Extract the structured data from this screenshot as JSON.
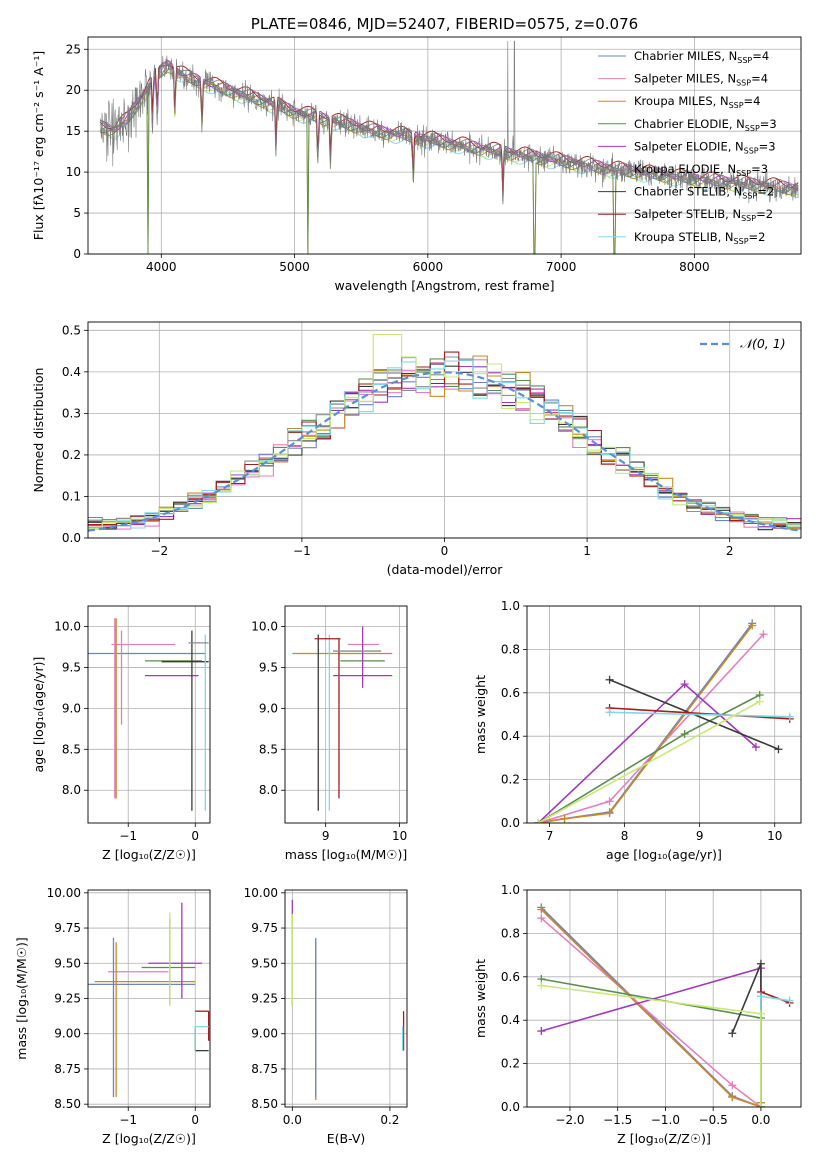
{
  "series_styles": [
    {
      "name": "Chabrier MILES",
      "nssp": "4",
      "color": "#6b84c8"
    },
    {
      "name": "Salpeter MILES",
      "nssp": "4",
      "color": "#e37ec0"
    },
    {
      "name": "Kroupa MILES",
      "nssp": "4",
      "color": "#c98a25"
    },
    {
      "name": "Chabrier ELODIE",
      "nssp": "3",
      "color": "#5b8e4e"
    },
    {
      "name": "Salpeter ELODIE",
      "nssp": "3",
      "color": "#a23ab8"
    },
    {
      "name": "Kroupa ELODIE",
      "nssp": "3",
      "color": "#8c8c8c"
    },
    {
      "name": "Chabrier STELIB",
      "nssp": "2",
      "color": "#3a3a3a"
    },
    {
      "name": "Salpeter STELIB",
      "nssp": "2",
      "color": "#a51e1e"
    },
    {
      "name": "Kroupa STELIB",
      "nssp": "2",
      "color": "#7fd8e8"
    }
  ],
  "chart_data": [
    {
      "id": "spectrum",
      "type": "line",
      "title": "PLATE=0846, MJD=52407, FIBERID=0575, z=0.076",
      "xlabel": "wavelength [Angstrom, rest frame]",
      "ylabel": "Flux [fλ10⁻¹⁷ erg cm⁻² s⁻¹ A⁻¹]",
      "xlim": [
        3450,
        8800
      ],
      "ylim": [
        0,
        26.5
      ],
      "xticks": [
        "4000",
        "5000",
        "6000",
        "7000",
        "8000"
      ],
      "yticks": [
        "0",
        "5",
        "10",
        "15",
        "20",
        "25"
      ],
      "legend_position": "upper right",
      "continuum_knots": {
        "x": [
          3550,
          3650,
          3750,
          3850,
          3950,
          4050,
          4200,
          4400,
          4600,
          4800,
          5000,
          5200,
          5400,
          5600,
          5800,
          6000,
          6200,
          6400,
          6600,
          6800,
          7000,
          7200,
          7400,
          7600,
          7800,
          8000,
          8200,
          8400,
          8600,
          8750
        ],
        "y": [
          15.5,
          15.0,
          16.5,
          19.0,
          21.5,
          23.0,
          21.5,
          20.5,
          19.5,
          18.5,
          17.3,
          16.6,
          15.8,
          15.0,
          14.5,
          14.0,
          13.4,
          12.8,
          12.3,
          11.8,
          11.3,
          10.8,
          10.3,
          9.9,
          9.5,
          9.1,
          8.8,
          8.5,
          8.2,
          8.0
        ]
      },
      "features": {
        "absorption_lines": [
          3934,
          3969,
          4102,
          4305,
          4861,
          5175,
          5270,
          5890,
          6563
        ],
        "drops_to_zero": [
          3900,
          5100,
          6800,
          7400
        ],
        "spikes": [
          6600,
          6650
        ]
      }
    },
    {
      "id": "residuals",
      "type": "step-histogram",
      "xlabel": "(data-model)/error",
      "ylabel": "Normed distribution",
      "xlim": [
        -2.5,
        2.5
      ],
      "ylim": [
        0,
        0.52
      ],
      "xticks": [
        "−2",
        "−1",
        "0",
        "1",
        "2"
      ],
      "yticks": [
        "0.0",
        "0.1",
        "0.2",
        "0.3",
        "0.4",
        "0.5"
      ],
      "bin_width": 0.1,
      "reference_curve": "𝒩(0, 1)",
      "legend_position": "upper right"
    },
    {
      "id": "age-vs-z",
      "type": "errorbar",
      "xlabel": "Z [log₁₀(Z/Z☉)]",
      "ylabel": "age  [log₁₀(age/yr)]",
      "xlim": [
        -1.6,
        0.22
      ],
      "ylim": [
        7.6,
        10.25
      ],
      "xticks": [
        "−1",
        "0"
      ],
      "yticks": [
        "8.0",
        "8.5",
        "9.0",
        "9.5",
        "10.0"
      ],
      "points": [
        {
          "s": 0,
          "x": -0.55,
          "y": 9.67,
          "xe": [
            -1.6,
            0.15
          ],
          "ye": null
        },
        {
          "s": 1,
          "x": -0.8,
          "y": 9.78,
          "xe": [
            -1.25,
            -0.3
          ],
          "ye": null
        },
        {
          "s": 1,
          "x": -1.2,
          "y": 9.0,
          "xe": null,
          "ye": [
            7.9,
            10.1
          ]
        },
        {
          "s": 2,
          "x": -1.18,
          "y": 9.0,
          "xe": null,
          "ye": [
            7.9,
            10.1
          ]
        },
        {
          "s": 1,
          "x": -1.1,
          "y": 9.5,
          "xe": null,
          "ye": [
            8.8,
            9.95
          ]
        },
        {
          "s": 4,
          "x": -0.3,
          "y": 9.4,
          "xe": [
            -0.75,
            0.05
          ],
          "ye": null
        },
        {
          "s": 3,
          "x": -0.3,
          "y": 9.58,
          "xe": [
            -0.75,
            0.1
          ],
          "ye": null
        },
        {
          "s": 6,
          "x": -0.2,
          "y": 9.57,
          "xe": [
            -0.5,
            0.2
          ],
          "ye": null
        },
        {
          "s": 6,
          "x": -0.05,
          "y": 8.9,
          "xe": null,
          "ye": [
            7.75,
            9.95
          ]
        },
        {
          "s": 8,
          "x": 0.15,
          "y": 8.9,
          "xe": null,
          "ye": [
            7.75,
            9.9
          ]
        },
        {
          "s": 5,
          "x": 0.12,
          "y": 9.8,
          "xe": [
            -0.1,
            0.2
          ],
          "ye": null
        }
      ]
    },
    {
      "id": "age-vs-mass",
      "type": "errorbar",
      "xlabel": "mass [log₁₀(M/M☉)]",
      "ylabel": "",
      "xlim": [
        8.45,
        10.1
      ],
      "ylim": [
        7.6,
        10.25
      ],
      "xticks": [
        "9",
        "10"
      ],
      "yticks": [
        "8.0",
        "8.5",
        "9.0",
        "9.5",
        "10.0"
      ],
      "points": [
        {
          "s": 2,
          "x": 9.2,
          "y": 9.67,
          "xe": [
            8.55,
            9.9
          ],
          "ye": null
        },
        {
          "s": 1,
          "x": 9.5,
          "y": 9.78,
          "xe": [
            9.3,
            9.72
          ],
          "ye": null
        },
        {
          "s": 7,
          "x": 9.18,
          "y": 9.1,
          "xe": null,
          "ye": [
            7.9,
            9.85
          ]
        },
        {
          "s": 6,
          "x": 8.9,
          "y": 9.0,
          "xe": null,
          "ye": [
            7.75,
            9.9
          ]
        },
        {
          "s": 8,
          "x": 9.05,
          "y": 9.0,
          "xe": null,
          "ye": [
            7.75,
            9.9
          ]
        },
        {
          "s": 4,
          "x": 9.5,
          "y": 9.4,
          "xe": [
            9.1,
            9.9
          ],
          "ye": null
        },
        {
          "s": 3,
          "x": 9.45,
          "y": 9.58,
          "xe": [
            9.2,
            9.8
          ],
          "ye": null
        },
        {
          "s": 4,
          "x": 9.5,
          "y": 9.6,
          "xe": null,
          "ye": [
            9.25,
            10.0
          ]
        },
        {
          "s": 5,
          "x": 9.35,
          "y": 9.7,
          "xe": [
            9.1,
            9.75
          ],
          "ye": null
        },
        {
          "s": 7,
          "x": 8.95,
          "y": 9.85,
          "xe": [
            8.85,
            9.2
          ],
          "ye": null
        }
      ]
    },
    {
      "id": "mass-weight-vs-age",
      "type": "line",
      "xlabel": "age  [log₁₀(age/yr)]",
      "ylabel": "mass weight",
      "xlim": [
        6.7,
        10.35
      ],
      "ylim": [
        0,
        1.0
      ],
      "xticks": [
        "7",
        "8",
        "9",
        "10"
      ],
      "yticks": [
        "0.0",
        "0.2",
        "0.4",
        "0.6",
        "0.8",
        "1.0"
      ],
      "series": [
        {
          "s": 0,
          "x": [
            6.85,
            7.2,
            7.8,
            9.7
          ],
          "y": [
            0.0,
            0.02,
            0.05,
            0.92
          ]
        },
        {
          "s": 1,
          "x": [
            6.85,
            7.8,
            9.85
          ],
          "y": [
            0.0,
            0.1,
            0.87
          ]
        },
        {
          "s": 2,
          "x": [
            6.85,
            7.2,
            7.8,
            9.7
          ],
          "y": [
            0.0,
            0.02,
            0.045,
            0.91
          ]
        },
        {
          "s": 3,
          "x": [
            6.85,
            8.8,
            9.8
          ],
          "y": [
            0.0,
            0.41,
            0.59
          ]
        },
        {
          "s": 4,
          "x": [
            6.85,
            8.8,
            9.75
          ],
          "y": [
            0.0,
            0.64,
            0.35
          ]
        },
        {
          "s": 6,
          "x": [
            7.8,
            10.05
          ],
          "y": [
            0.66,
            0.34
          ]
        },
        {
          "s": 7,
          "x": [
            7.8,
            10.2
          ],
          "y": [
            0.53,
            0.48
          ]
        },
        {
          "s": 8,
          "x": [
            7.8,
            10.2
          ],
          "y": [
            0.51,
            0.49
          ]
        },
        {
          "s": 9,
          "x": [
            6.85,
            9.8
          ],
          "y": [
            0.0,
            0.56
          ]
        }
      ]
    },
    {
      "id": "mass-vs-z",
      "type": "errorbar",
      "xlabel": "Z [log₁₀(Z/Z☉)]",
      "ylabel": "mass [log₁₀(M/M☉)]",
      "xlim": [
        -1.6,
        0.22
      ],
      "ylim": [
        8.48,
        10.02
      ],
      "xticks": [
        "−1",
        "0"
      ],
      "yticks": [
        "8.50",
        "8.75",
        "9.00",
        "9.25",
        "9.50",
        "9.75",
        "10.00"
      ],
      "points": [
        {
          "s": 0,
          "x": -0.6,
          "y": 9.35,
          "xe": [
            -1.6,
            0.0
          ],
          "ye": null
        },
        {
          "s": 2,
          "x": -0.7,
          "y": 9.37,
          "xe": [
            -1.5,
            0.0
          ],
          "ye": null
        },
        {
          "s": 1,
          "x": -0.9,
          "y": 9.44,
          "xe": [
            -1.3,
            -0.4
          ],
          "ye": null
        },
        {
          "s": 0,
          "x": -1.22,
          "y": 9.1,
          "xe": null,
          "ye": [
            8.55,
            9.68
          ]
        },
        {
          "s": 2,
          "x": -1.18,
          "y": 9.1,
          "xe": null,
          "ye": [
            8.55,
            9.65
          ]
        },
        {
          "s": 4,
          "x": -0.35,
          "y": 9.5,
          "xe": [
            -0.7,
            0.1
          ],
          "ye": null
        },
        {
          "s": 3,
          "x": -0.4,
          "y": 9.47,
          "xe": [
            -0.8,
            0.0
          ],
          "ye": null
        },
        {
          "s": 4,
          "x": -0.2,
          "y": 9.6,
          "xe": null,
          "ye": [
            9.25,
            9.93
          ]
        },
        {
          "s": 3,
          "x": -0.38,
          "y": 9.5,
          "xe": null,
          "ye": [
            9.2,
            9.82
          ]
        },
        {
          "s": 9,
          "x": -0.38,
          "y": 9.55,
          "xe": null,
          "ye": [
            9.2,
            9.86
          ]
        },
        {
          "s": 6,
          "x": 0.0,
          "y": 8.88,
          "xe": [
            0.0,
            0.2
          ],
          "ye": [
            8.88,
            9.05
          ]
        },
        {
          "s": 7,
          "x": 0.2,
          "y": 9.16,
          "xe": [
            0.0,
            0.2
          ],
          "ye": [
            8.95,
            9.16
          ]
        },
        {
          "s": 8,
          "x": 0.0,
          "y": 9.05,
          "xe": [
            0.0,
            0.2
          ],
          "ye": [
            8.88,
            9.05
          ]
        }
      ]
    },
    {
      "id": "mass-vs-ebv",
      "type": "errorbar",
      "xlabel": "E(B-V)",
      "ylabel": "",
      "xlim": [
        -0.015,
        0.235
      ],
      "ylim": [
        8.48,
        10.02
      ],
      "xticks": [
        "0.0",
        "0.2"
      ],
      "yticks": [
        "8.50",
        "8.75",
        "9.00",
        "9.25",
        "9.50",
        "9.75",
        "10.00"
      ],
      "points": [
        {
          "s": 4,
          "x": 0.0,
          "y": 9.6,
          "xe": null,
          "ye": [
            9.2,
            9.95
          ]
        },
        {
          "s": 9,
          "x": 0.0,
          "y": 9.5,
          "xe": null,
          "ye": [
            9.2,
            9.85
          ]
        },
        {
          "s": 2,
          "x": 0.048,
          "y": 9.1,
          "xe": null,
          "ye": [
            8.53,
            9.65
          ]
        },
        {
          "s": 0,
          "x": 0.048,
          "y": 9.1,
          "xe": null,
          "ye": [
            8.55,
            9.68
          ]
        },
        {
          "s": 7,
          "x": 0.228,
          "y": 9.0,
          "xe": null,
          "ye": [
            8.88,
            9.16
          ]
        },
        {
          "s": 8,
          "x": 0.226,
          "y": 9.0,
          "xe": null,
          "ye": [
            8.88,
            9.05
          ]
        }
      ]
    },
    {
      "id": "mass-weight-vs-z",
      "type": "line",
      "xlabel": "Z [log₁₀(Z/Z☉)]",
      "ylabel": "mass weight",
      "xlim": [
        -2.45,
        0.42
      ],
      "ylim": [
        0,
        1.0
      ],
      "xticks": [
        "−2.0",
        "−1.5",
        "−1.0",
        "−0.5",
        "0.0"
      ],
      "yticks": [
        "0.0",
        "0.2",
        "0.4",
        "0.6",
        "0.8",
        "1.0"
      ],
      "series": [
        {
          "s": 0,
          "x": [
            -2.3,
            -0.3,
            0.0,
            0.0
          ],
          "y": [
            0.92,
            0.05,
            0.0,
            0.02
          ]
        },
        {
          "s": 1,
          "x": [
            -2.3,
            -0.3,
            0.0
          ],
          "y": [
            0.87,
            0.1,
            0.0
          ]
        },
        {
          "s": 2,
          "x": [
            -2.3,
            -0.3,
            0.0,
            0.0
          ],
          "y": [
            0.91,
            0.045,
            0.0,
            0.02
          ]
        },
        {
          "s": 3,
          "x": [
            -2.3,
            0.0
          ],
          "y": [
            0.59,
            0.41
          ]
        },
        {
          "s": 4,
          "x": [
            -2.3,
            0.0,
            0.0
          ],
          "y": [
            0.35,
            0.64,
            0.0
          ]
        },
        {
          "s": 6,
          "x": [
            -0.3,
            0.0,
            0.0
          ],
          "y": [
            0.34,
            0.66,
            0.0
          ]
        },
        {
          "s": 7,
          "x": [
            0.0,
            0.0,
            0.3
          ],
          "y": [
            0.0,
            0.53,
            0.48
          ]
        },
        {
          "s": 8,
          "x": [
            0.0,
            0.0,
            0.3
          ],
          "y": [
            0.0,
            0.51,
            0.49
          ]
        },
        {
          "s": 9,
          "x": [
            -2.3,
            0.0,
            0.0
          ],
          "y": [
            0.56,
            0.43,
            0.0
          ]
        }
      ]
    }
  ]
}
